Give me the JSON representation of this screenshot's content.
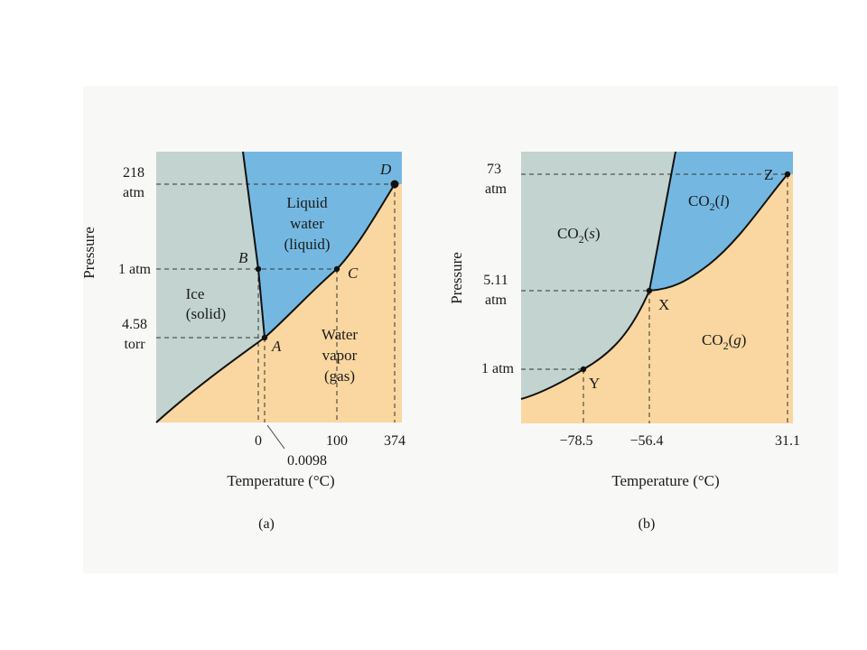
{
  "colors": {
    "solid": "#c2d3d0",
    "liquid": "#74b8e2",
    "gas": "#fad7a0",
    "line": "#111111"
  },
  "water": {
    "y_axis_title": "Pressure",
    "x_axis_title": "Temperature (°C)",
    "caption": "(a)",
    "y_ticks": {
      "p218_num": "218",
      "p218_unit": "atm",
      "p1": "1 atm",
      "p458_num": "4.58",
      "p458_unit": "torr"
    },
    "x_ticks": {
      "t0": "0",
      "t100": "100",
      "t374": "374",
      "t00098": "0.0098"
    },
    "regions": {
      "solid_1": "Ice",
      "solid_2": "(solid)",
      "liquid_1": "Liquid",
      "liquid_2": "water",
      "liquid_3": "(liquid)",
      "gas_1": "Water",
      "gas_2": "vapor",
      "gas_3": "(gas)"
    },
    "points": {
      "A": "A",
      "B": "B",
      "C": "C",
      "D": "D"
    }
  },
  "co2": {
    "y_axis_title": "Pressure",
    "x_axis_title": "Temperature (°C)",
    "caption": "(b)",
    "y_ticks": {
      "p73_num": "73",
      "p73_unit": "atm",
      "p511_num": "5.11",
      "p511_unit": "atm",
      "p1": "1 atm"
    },
    "x_ticks": {
      "t785": "−78.5",
      "t564": "−56.4",
      "t311": "31.1"
    },
    "regions": {
      "solid_base": "CO",
      "solid_sub": "2",
      "solid_phase": "s",
      "liquid_base": "CO",
      "liquid_sub": "2",
      "liquid_phase": "l",
      "gas_base": "CO",
      "gas_sub": "2",
      "gas_phase": "g"
    },
    "points": {
      "X": "X",
      "Y": "Y",
      "Z": "Z"
    }
  }
}
